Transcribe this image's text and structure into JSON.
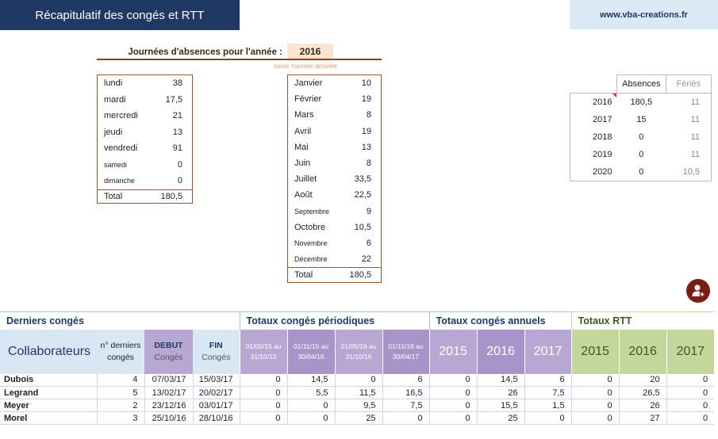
{
  "header": {
    "title": "Récapitulatif des congés et RTT",
    "site": "www.vba-creations.fr"
  },
  "year_selector": {
    "label": "Journées d'absences pour l'année :",
    "value": "2016",
    "hint": "saisir l'année désirée."
  },
  "weekdays": {
    "rows": [
      {
        "label": "lundi",
        "value": "38"
      },
      {
        "label": "mardi",
        "value": "17,5"
      },
      {
        "label": "mercredi",
        "value": "21"
      },
      {
        "label": "jeudi",
        "value": "13"
      },
      {
        "label": "vendredi",
        "value": "91"
      },
      {
        "label": "samedi",
        "value": "0"
      },
      {
        "label": "dimanche",
        "value": "0"
      }
    ],
    "total_label": "Total",
    "total_value": "180,5"
  },
  "months": {
    "rows": [
      {
        "label": "Janvier",
        "value": "10"
      },
      {
        "label": "Février",
        "value": "19"
      },
      {
        "label": "Mars",
        "value": "8"
      },
      {
        "label": "Avril",
        "value": "19"
      },
      {
        "label": "Mai",
        "value": "13"
      },
      {
        "label": "Juin",
        "value": "8"
      },
      {
        "label": "Juillet",
        "value": "33,5"
      },
      {
        "label": "Août",
        "value": "22,5"
      },
      {
        "label": "Septembre",
        "value": "9"
      },
      {
        "label": "Octobre",
        "value": "10,5"
      },
      {
        "label": "Novembre",
        "value": "6"
      },
      {
        "label": "Décembre",
        "value": "22"
      }
    ],
    "total_label": "Total",
    "total_value": "180,5"
  },
  "year_summary": {
    "col_absences": "Absences",
    "col_feries": "Fériés",
    "rows": [
      {
        "year": "2016",
        "absences": "180,5",
        "feries": "11"
      },
      {
        "year": "2017",
        "absences": "15",
        "feries": "11"
      },
      {
        "year": "2018",
        "absences": "0",
        "feries": "11"
      },
      {
        "year": "2019",
        "absences": "0",
        "feries": "11"
      },
      {
        "year": "2020",
        "absences": "0",
        "feries": "10,5"
      }
    ]
  },
  "table": {
    "sections": {
      "derniers": "Derniers congés",
      "periodiques": "Totaux congés périodiques",
      "annuels": "Totaux congés annuels",
      "rtt": "Totaux RTT"
    },
    "headers": {
      "collaborateurs": "Collaborateurs",
      "n_derniers_1": "n° derniers",
      "n_derniers_2": "congés",
      "debut_1": "DEBUT",
      "debut_2": "Congés",
      "fin_1": "FIN",
      "fin_2": "Congés",
      "periods": [
        {
          "l1": "01/05/15 au",
          "l2": "31/10/15"
        },
        {
          "l1": "01/11/15 au",
          "l2": "30/04/16"
        },
        {
          "l1": "01/05/16 au",
          "l2": "31/10/16"
        },
        {
          "l1": "01/11/16 au",
          "l2": "30/04/17"
        }
      ],
      "years_annuel": [
        "2015",
        "2016",
        "2017"
      ],
      "years_rtt": [
        "2015",
        "2016",
        "2017"
      ]
    },
    "rows": [
      {
        "name": "Dubois",
        "n": "4",
        "debut": "07/03/17",
        "fin": "15/03/17",
        "p": [
          "0",
          "14,5",
          "0",
          "6"
        ],
        "a": [
          "0",
          "14,5",
          "6"
        ],
        "r": [
          "0",
          "20",
          "0"
        ]
      },
      {
        "name": "Legrand",
        "n": "5",
        "debut": "13/02/17",
        "fin": "20/02/17",
        "p": [
          "0",
          "5,5",
          "11,5",
          "16,5"
        ],
        "a": [
          "0",
          "26",
          "7,5"
        ],
        "r": [
          "0",
          "26,5",
          "0"
        ]
      },
      {
        "name": "Meyer",
        "n": "2",
        "debut": "23/12/16",
        "fin": "03/01/17",
        "p": [
          "0",
          "0",
          "9,5",
          "7,5"
        ],
        "a": [
          "0",
          "15,5",
          "1,5"
        ],
        "r": [
          "0",
          "26",
          "0"
        ]
      },
      {
        "name": "Morel",
        "n": "3",
        "debut": "25/10/16",
        "fin": "28/10/16",
        "p": [
          "0",
          "0",
          "25",
          "0"
        ],
        "a": [
          "0",
          "25",
          "0"
        ],
        "r": [
          "0",
          "27",
          "0"
        ]
      }
    ]
  },
  "colors": {
    "banner": "#1f3864",
    "brown": "#a0522d",
    "lavender": "#b9a7d3",
    "green": "#c4d79b",
    "icon": "#7a1e14"
  }
}
